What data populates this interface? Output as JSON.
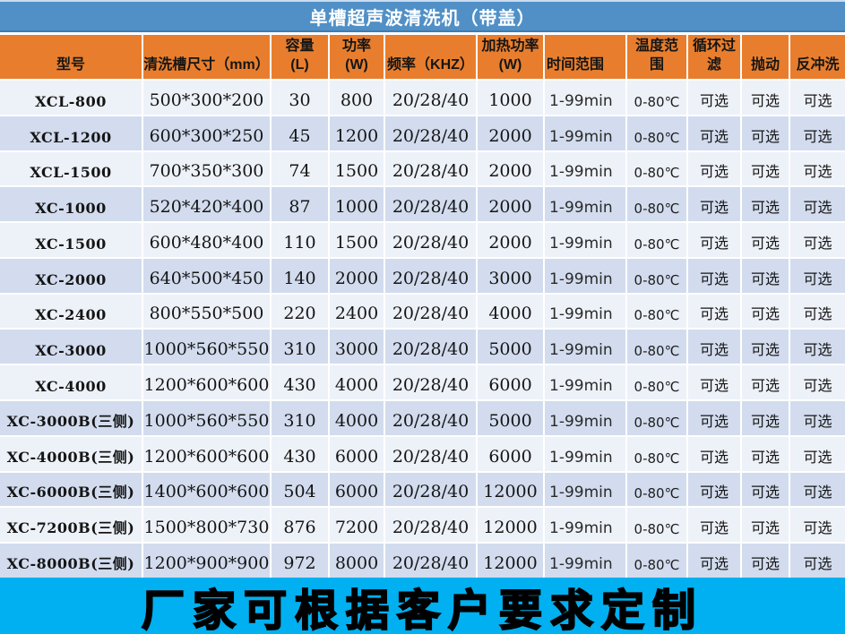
{
  "title": "单槽超声波清洗机（带盖）",
  "banner": "厂家可根据客户要求定制",
  "colors": {
    "title_bar": "#5090C7",
    "header": "#E87E2D",
    "row_light": "#EDF1F8",
    "row_dark": "#D2DCEE",
    "banner": "#00B0F0",
    "title_text": "#FFFFFF",
    "table_text": "#151515"
  },
  "table": {
    "columns": [
      {
        "key": "model",
        "label": "型号"
      },
      {
        "key": "size",
        "label": "清洗槽尺寸（mm）"
      },
      {
        "key": "capacity",
        "label": "容量\n(L)"
      },
      {
        "key": "power",
        "label": "功率\n(W)"
      },
      {
        "key": "frequency",
        "label": "频率（KHZ）"
      },
      {
        "key": "heating",
        "label": "加热功率\n(W)"
      },
      {
        "key": "time",
        "label": "时间范围"
      },
      {
        "key": "temp",
        "label": "温度范\n围"
      },
      {
        "key": "filter",
        "label": "循环过\n滤"
      },
      {
        "key": "throw",
        "label": "抛动"
      },
      {
        "key": "backwash",
        "label": "反冲洗"
      }
    ],
    "rows": [
      {
        "model": "XCL-800",
        "size": "500*300*200",
        "capacity": "30",
        "power": "800",
        "frequency": "20/28/40",
        "heating": "1000",
        "time": "1-99min",
        "temp": "0-80℃",
        "filter": "可选",
        "throw": "可选",
        "backwash": "可选"
      },
      {
        "model": "XCL-1200",
        "size": "600*300*250",
        "capacity": "45",
        "power": "1200",
        "frequency": "20/28/40",
        "heating": "2000",
        "time": "1-99min",
        "temp": "0-80℃",
        "filter": "可选",
        "throw": "可选",
        "backwash": "可选"
      },
      {
        "model": "XCL-1500",
        "size": "700*350*300",
        "capacity": "74",
        "power": "1500",
        "frequency": "20/28/40",
        "heating": "2000",
        "time": "1-99min",
        "temp": "0-80℃",
        "filter": "可选",
        "throw": "可选",
        "backwash": "可选"
      },
      {
        "model": "XC-1000",
        "size": "520*420*400",
        "capacity": "87",
        "power": "1000",
        "frequency": "20/28/40",
        "heating": "2000",
        "time": "1-99min",
        "temp": "0-80℃",
        "filter": "可选",
        "throw": "可选",
        "backwash": "可选"
      },
      {
        "model": "XC-1500",
        "size": "600*480*400",
        "capacity": "110",
        "power": "1500",
        "frequency": "20/28/40",
        "heating": "2000",
        "time": "1-99min",
        "temp": "0-80℃",
        "filter": "可选",
        "throw": "可选",
        "backwash": "可选"
      },
      {
        "model": "XC-2000",
        "size": "640*500*450",
        "capacity": "140",
        "power": "2000",
        "frequency": "20/28/40",
        "heating": "3000",
        "time": "1-99min",
        "temp": "0-80℃",
        "filter": "可选",
        "throw": "可选",
        "backwash": "可选"
      },
      {
        "model": "XC-2400",
        "size": "800*550*500",
        "capacity": "220",
        "power": "2400",
        "frequency": "20/28/40",
        "heating": "4000",
        "time": "1-99min",
        "temp": "0-80℃",
        "filter": "可选",
        "throw": "可选",
        "backwash": "可选"
      },
      {
        "model": "XC-3000",
        "size": "1000*560*550",
        "capacity": "310",
        "power": "3000",
        "frequency": "20/28/40",
        "heating": "5000",
        "time": "1-99min",
        "temp": "0-80℃",
        "filter": "可选",
        "throw": "可选",
        "backwash": "可选"
      },
      {
        "model": "XC-4000",
        "size": "1200*600*600",
        "capacity": "430",
        "power": "4000",
        "frequency": "20/28/40",
        "heating": "6000",
        "time": "1-99min",
        "temp": "0-80℃",
        "filter": "可选",
        "throw": "可选",
        "backwash": "可选"
      },
      {
        "model": "XC-3000B(三侧)",
        "size": "1000*560*550",
        "capacity": "310",
        "power": "4000",
        "frequency": "20/28/40",
        "heating": "5000",
        "time": "1-99min",
        "temp": "0-80℃",
        "filter": "可选",
        "throw": "可选",
        "backwash": "可选"
      },
      {
        "model": "XC-4000B(三侧)",
        "size": "1200*600*600",
        "capacity": "430",
        "power": "6000",
        "frequency": "20/28/40",
        "heating": "6000",
        "time": "1-99min",
        "temp": "0-80℃",
        "filter": "可选",
        "throw": "可选",
        "backwash": "可选"
      },
      {
        "model": "XC-6000B(三侧)",
        "size": "1400*600*600",
        "capacity": "504",
        "power": "6000",
        "frequency": "20/28/40",
        "heating": "12000",
        "time": "1-99min",
        "temp": "0-80℃",
        "filter": "可选",
        "throw": "可选",
        "backwash": "可选"
      },
      {
        "model": "XC-7200B(三侧)",
        "size": "1500*800*730",
        "capacity": "876",
        "power": "7200",
        "frequency": "20/28/40",
        "heating": "12000",
        "time": "1-99min",
        "temp": "0-80℃",
        "filter": "可选",
        "throw": "可选",
        "backwash": "可选"
      },
      {
        "model": "XC-8000B(三侧)",
        "size": "1200*900*900",
        "capacity": "972",
        "power": "8000",
        "frequency": "20/28/40",
        "heating": "12000",
        "time": "1-99min",
        "temp": "0-80℃",
        "filter": "可选",
        "throw": "可选",
        "backwash": "可选"
      }
    ]
  }
}
